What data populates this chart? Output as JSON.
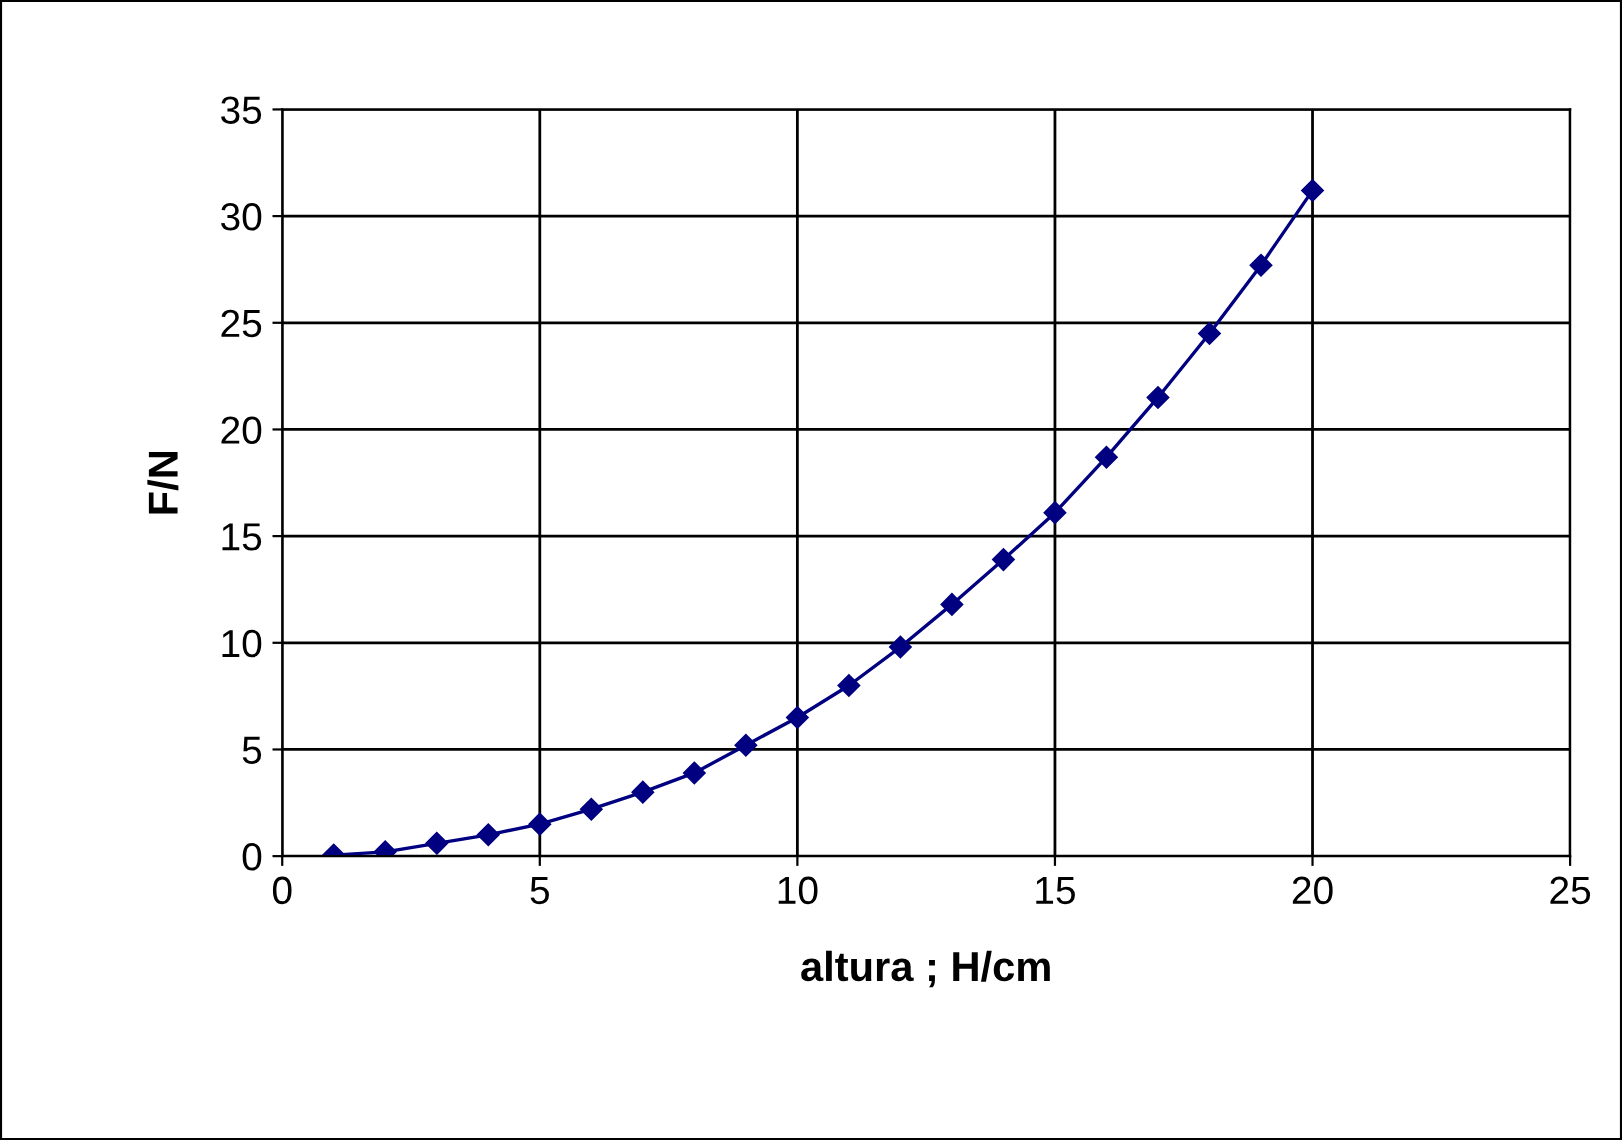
{
  "chart_data": {
    "type": "line",
    "xlabel": "altura ; H/cm",
    "ylabel": "F/N",
    "x": [
      1,
      2,
      3,
      4,
      5,
      6,
      7,
      8,
      9,
      10,
      11,
      12,
      13,
      14,
      15,
      16,
      17,
      18,
      19,
      20
    ],
    "series": [
      {
        "color": "#000080",
        "values": [
          0.05,
          0.2,
          0.6,
          1.0,
          1.5,
          2.2,
          3.0,
          3.9,
          5.2,
          6.5,
          8.0,
          9.8,
          11.8,
          13.9,
          16.1,
          18.7,
          21.5,
          24.5,
          27.7,
          31.2
        ]
      }
    ],
    "xlim": [
      0,
      25
    ],
    "xticks": [
      0,
      5,
      10,
      15,
      20,
      25
    ],
    "ylim": [
      0,
      35
    ],
    "yticks": [
      0,
      5,
      10,
      15,
      20,
      25,
      30,
      35
    ],
    "grid": true,
    "marker": "diamond",
    "line_style": "solid",
    "legend": false
  }
}
